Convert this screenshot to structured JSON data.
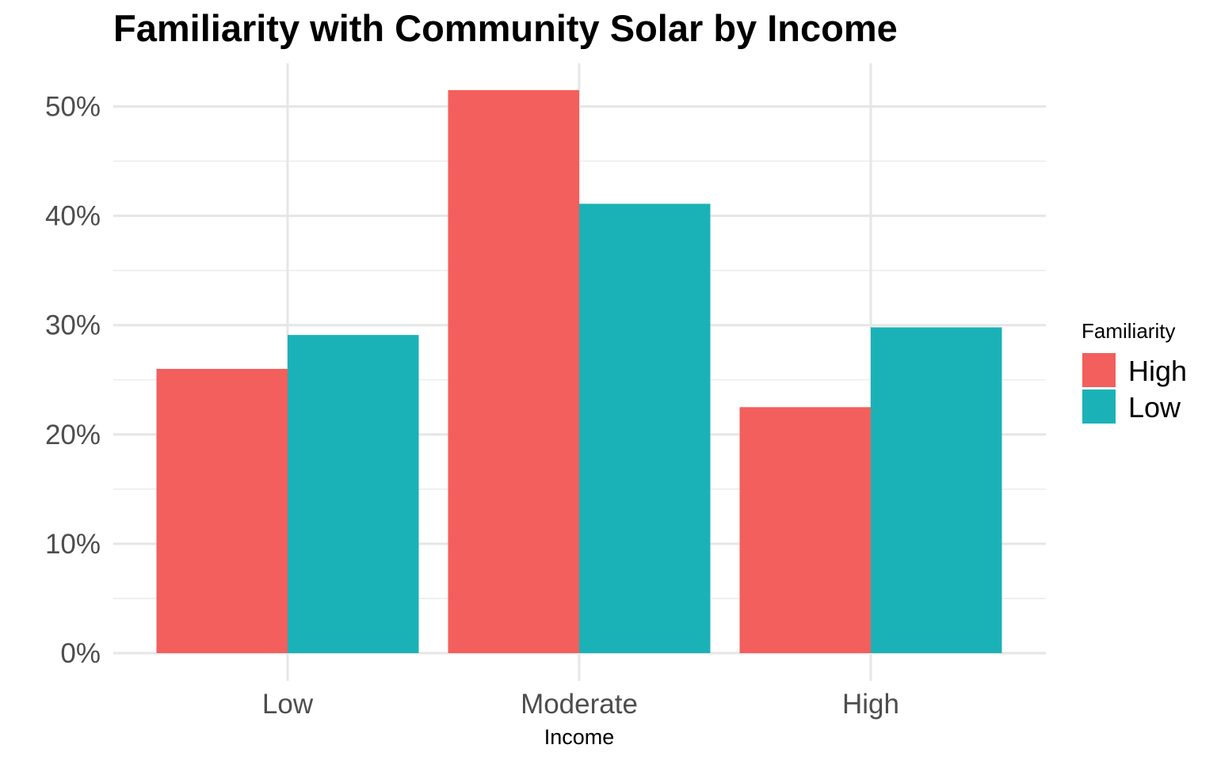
{
  "chart_data": {
    "type": "bar",
    "title": "Familiarity with Community Solar by Income",
    "xlabel": "Income",
    "ylabel": "",
    "categories": [
      "Low",
      "Moderate",
      "High"
    ],
    "series": [
      {
        "name": "High",
        "color": "#F25F5C",
        "values": [
          26.0,
          51.5,
          22.5
        ]
      },
      {
        "name": "Low",
        "color": "#1AB2B7",
        "values": [
          29.1,
          41.1,
          29.8
        ]
      }
    ],
    "ylim": [
      0,
      53
    ],
    "y_ticks": [
      0,
      10,
      20,
      30,
      40,
      50
    ],
    "y_tick_labels": [
      "0%",
      "10%",
      "20%",
      "30%",
      "40%",
      "50%"
    ],
    "grid": true,
    "legend": {
      "title": "Familiarity",
      "placement": "right"
    }
  }
}
